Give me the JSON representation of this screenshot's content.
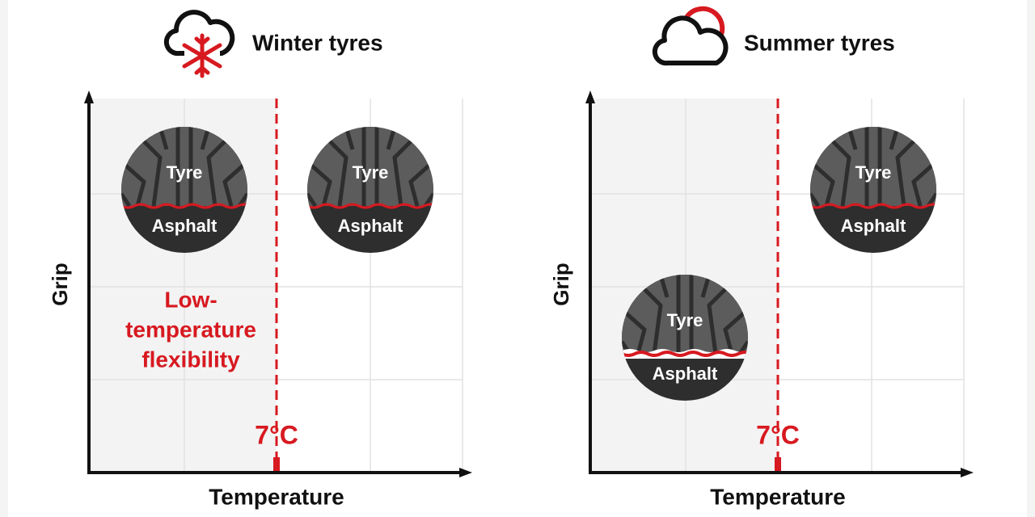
{
  "panels": [
    {
      "title": "Winter tyres",
      "y_axis_label": "Grip",
      "x_axis_label": "Temperature",
      "threshold_label": "7°C",
      "annotation": [
        "Low-",
        "temperature",
        "flexibility"
      ],
      "tyres": [
        {
          "top_label": "Tyre",
          "bottom_label": "Asphalt"
        },
        {
          "top_label": "Tyre",
          "bottom_label": "Asphalt"
        }
      ]
    },
    {
      "title": "Summer tyres",
      "y_axis_label": "Grip",
      "x_axis_label": "Temperature",
      "threshold_label": "7°C",
      "tyres": [
        {
          "top_label": "Tyre",
          "bottom_label": "Asphalt"
        },
        {
          "top_label": "Tyre",
          "bottom_label": "Asphalt"
        }
      ]
    }
  ]
}
